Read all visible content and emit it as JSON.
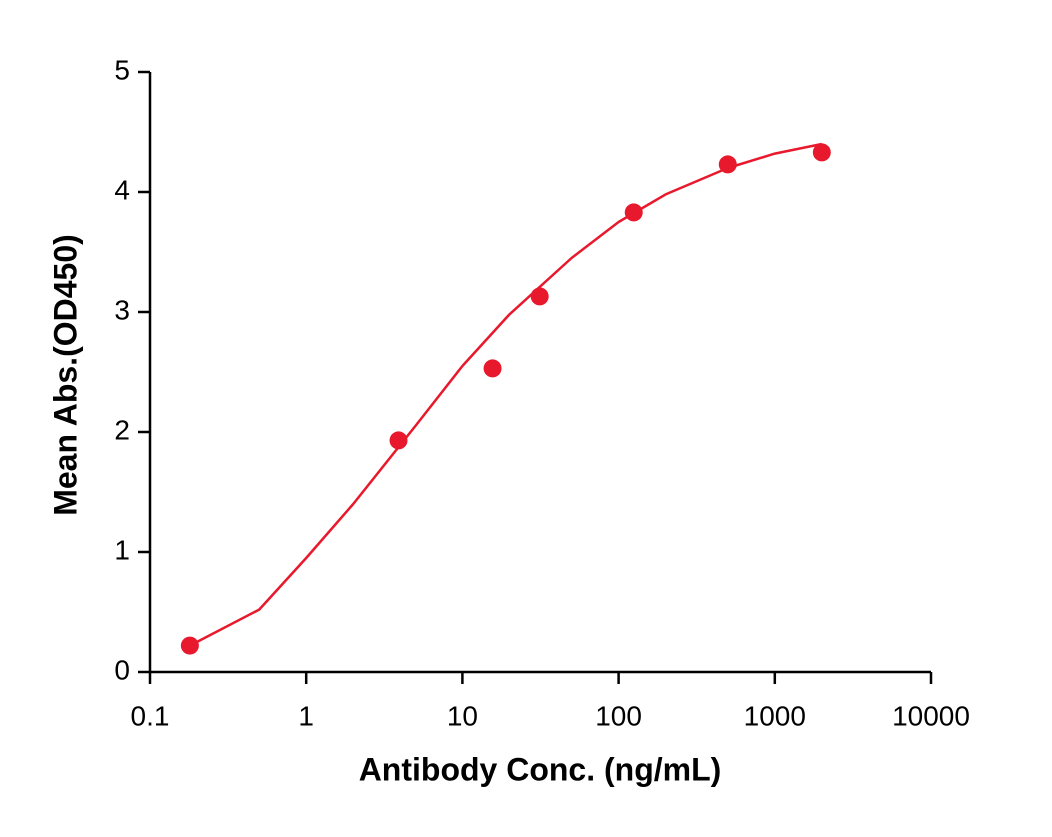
{
  "chart_data": {
    "type": "scatter",
    "x_label": "Antibody Conc. (ng/mL)",
    "y_label": "Mean Abs.(OD450)",
    "xscale": "log",
    "xlim": [
      0.1,
      10000
    ],
    "xticks": [
      0.1,
      1,
      10,
      100,
      1000,
      10000
    ],
    "ylim": [
      0,
      5
    ],
    "yticks": [
      0,
      1,
      2,
      3,
      4,
      5
    ],
    "grid": false,
    "series": [
      {
        "type": "scatter",
        "color": "#e8192c",
        "x": [
          0.18,
          3.9,
          15.6,
          31.25,
          125,
          500,
          2000
        ],
        "values": [
          0.22,
          1.93,
          2.53,
          3.13,
          3.83,
          4.23,
          4.33
        ]
      },
      {
        "type": "line",
        "color": "#e8192c",
        "x": [
          0.18,
          0.5,
          1,
          2,
          5,
          10,
          20,
          50,
          100,
          200,
          500,
          1000,
          2000
        ],
        "values": [
          0.22,
          0.52,
          0.95,
          1.4,
          2.05,
          2.55,
          2.98,
          3.45,
          3.75,
          3.98,
          4.2,
          4.32,
          4.4
        ]
      }
    ]
  }
}
